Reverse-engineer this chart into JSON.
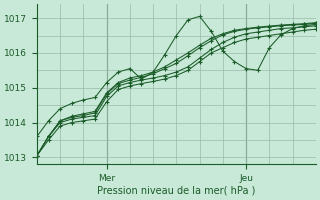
{
  "title": "",
  "xlabel": "Pression niveau de la mer( hPa )",
  "bg_color": "#c8e8d8",
  "grid_color": "#99bbaa",
  "line_color": "#1a5c28",
  "xlim": [
    0,
    72
  ],
  "ylim": [
    1012.8,
    1017.4
  ],
  "yticks": [
    1013,
    1014,
    1015,
    1016,
    1017
  ],
  "day_labels": [
    [
      "Mer",
      18
    ],
    [
      "Jeu",
      54
    ]
  ],
  "series": [
    [
      0,
      1013.05,
      3,
      1013.5,
      6,
      1013.9,
      9,
      1014.0,
      12,
      1014.05,
      15,
      1014.1,
      18,
      1014.6,
      21,
      1014.95,
      24,
      1015.05,
      27,
      1015.12,
      30,
      1015.18,
      33,
      1015.25,
      36,
      1015.35,
      39,
      1015.5,
      42,
      1015.75,
      45,
      1016.0,
      48,
      1016.15,
      51,
      1016.3,
      54,
      1016.4,
      57,
      1016.45,
      60,
      1016.5,
      63,
      1016.55,
      66,
      1016.6,
      69,
      1016.65,
      72,
      1016.68
    ],
    [
      0,
      1013.05,
      3,
      1013.6,
      6,
      1014.0,
      9,
      1014.1,
      12,
      1014.15,
      15,
      1014.2,
      18,
      1014.75,
      21,
      1015.05,
      24,
      1015.15,
      27,
      1015.22,
      30,
      1015.28,
      33,
      1015.35,
      36,
      1015.45,
      39,
      1015.6,
      42,
      1015.85,
      45,
      1016.1,
      48,
      1016.3,
      51,
      1016.45,
      54,
      1016.55,
      57,
      1016.6,
      60,
      1016.65,
      63,
      1016.7,
      66,
      1016.72,
      69,
      1016.75,
      72,
      1016.78
    ],
    [
      0,
      1013.05,
      3,
      1013.6,
      6,
      1014.05,
      9,
      1014.15,
      12,
      1014.2,
      15,
      1014.28,
      18,
      1014.82,
      21,
      1015.12,
      24,
      1015.22,
      27,
      1015.3,
      30,
      1015.4,
      33,
      1015.55,
      36,
      1015.7,
      39,
      1015.92,
      42,
      1016.15,
      45,
      1016.35,
      48,
      1016.52,
      51,
      1016.62,
      54,
      1016.68,
      57,
      1016.72,
      60,
      1016.75,
      63,
      1016.78,
      66,
      1016.8,
      69,
      1016.82,
      72,
      1016.85
    ],
    [
      0,
      1013.05,
      3,
      1013.6,
      6,
      1014.05,
      9,
      1014.18,
      12,
      1014.25,
      15,
      1014.32,
      18,
      1014.85,
      21,
      1015.15,
      24,
      1015.28,
      27,
      1015.35,
      30,
      1015.45,
      33,
      1015.6,
      36,
      1015.8,
      39,
      1016.0,
      42,
      1016.22,
      45,
      1016.42,
      48,
      1016.55,
      51,
      1016.65,
      54,
      1016.7,
      57,
      1016.74,
      60,
      1016.77,
      63,
      1016.8,
      66,
      1016.82,
      69,
      1016.84,
      72,
      1016.87
    ],
    [
      0,
      1013.6,
      3,
      1014.05,
      6,
      1014.4,
      9,
      1014.55,
      12,
      1014.65,
      15,
      1014.72,
      18,
      1015.15,
      21,
      1015.45,
      24,
      1015.55,
      27,
      1015.25,
      30,
      1015.45,
      33,
      1015.95,
      36,
      1016.5,
      39,
      1016.95,
      42,
      1017.05,
      45,
      1016.62,
      48,
      1016.05,
      51,
      1015.75,
      54,
      1015.55,
      57,
      1015.5,
      60,
      1016.15,
      63,
      1016.52,
      66,
      1016.7,
      69,
      1016.78,
      72,
      1016.82
    ]
  ]
}
